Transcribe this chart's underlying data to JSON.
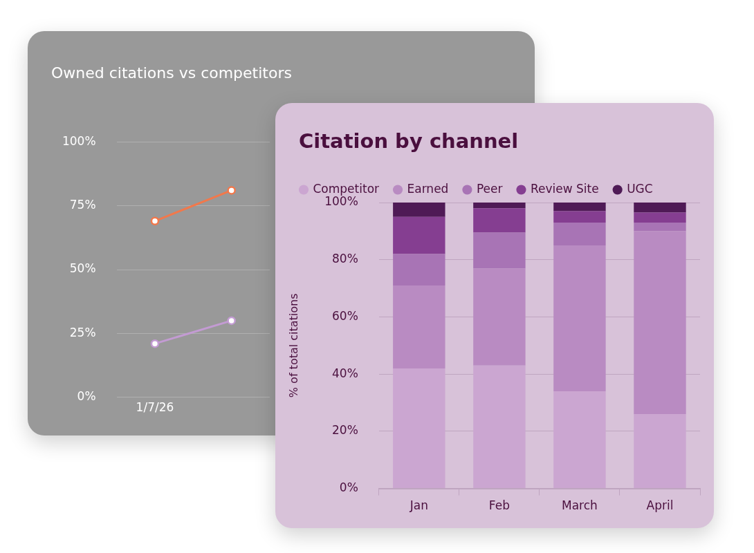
{
  "chart_data": [
    {
      "type": "line",
      "title": "Owned citations vs competitors",
      "categories": [
        "1/7/26",
        null
      ],
      "marker": "circle",
      "grid": "y",
      "legend": false,
      "ylim": [
        0,
        100
      ],
      "yticks": [
        {
          "value": 0,
          "label": "0%"
        },
        {
          "value": 25,
          "label": "25%"
        },
        {
          "value": 50,
          "label": "50%"
        },
        {
          "value": 75,
          "label": "75%"
        },
        {
          "value": 100,
          "label": "100%"
        }
      ],
      "series": [
        {
          "color": "#f2784b",
          "values": [
            69,
            81
          ]
        },
        {
          "color": "#c39bd3",
          "values": [
            21,
            30
          ]
        }
      ]
    },
    {
      "type": "bar",
      "stacked": true,
      "title": "Citation by channel",
      "ylabel": "% of total citations",
      "categories": [
        "Jan",
        "Feb",
        "March",
        "April"
      ],
      "grid": "y",
      "legend": "top",
      "ylim": [
        0,
        100
      ],
      "yticks": [
        {
          "value": 0,
          "label": "0%"
        },
        {
          "value": 20,
          "label": "20%"
        },
        {
          "value": 40,
          "label": "40%"
        },
        {
          "value": 60,
          "label": "60%"
        },
        {
          "value": 80,
          "label": "80%"
        },
        {
          "value": 100,
          "label": "100%"
        }
      ],
      "series": [
        {
          "name": "Competitor",
          "color": "#cba6d1",
          "values": [
            42,
            43,
            34,
            26
          ]
        },
        {
          "name": "Earned",
          "color": "#b98bc2",
          "values": [
            29,
            34,
            51,
            64
          ]
        },
        {
          "name": "Peer",
          "color": "#a874b5",
          "values": [
            11,
            12.5,
            8,
            3
          ]
        },
        {
          "name": "Review Site",
          "color": "#853e91",
          "values": [
            13,
            8.5,
            4,
            3.5
          ]
        },
        {
          "name": "UGC",
          "color": "#4f1a56",
          "values": [
            5,
            2,
            3,
            3.5
          ]
        }
      ]
    }
  ]
}
